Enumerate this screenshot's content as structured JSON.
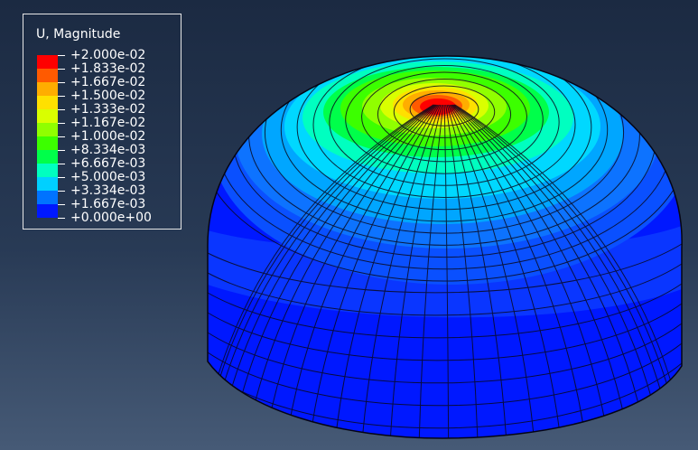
{
  "legend": {
    "title": "U, Magnitude",
    "labels": [
      "+2.000e-02",
      "+1.833e-02",
      "+1.667e-02",
      "+1.500e-02",
      "+1.333e-02",
      "+1.167e-02",
      "+1.000e-02",
      "+8.334e-03",
      "+6.667e-03",
      "+5.000e-03",
      "+3.334e-03",
      "+1.667e-03",
      "+0.000e+00"
    ],
    "colors": [
      "#ff0000",
      "#ff5a00",
      "#ffad00",
      "#ffe000",
      "#d9ff00",
      "#90ff00",
      "#3cff00",
      "#00ff4a",
      "#00ffc0",
      "#00d0ff",
      "#0073ff",
      "#0018ff"
    ]
  },
  "colors": {
    "background_top": "#1b2a42",
    "background_bottom": "#465a76",
    "mesh_lines": "#0a0a1e"
  }
}
